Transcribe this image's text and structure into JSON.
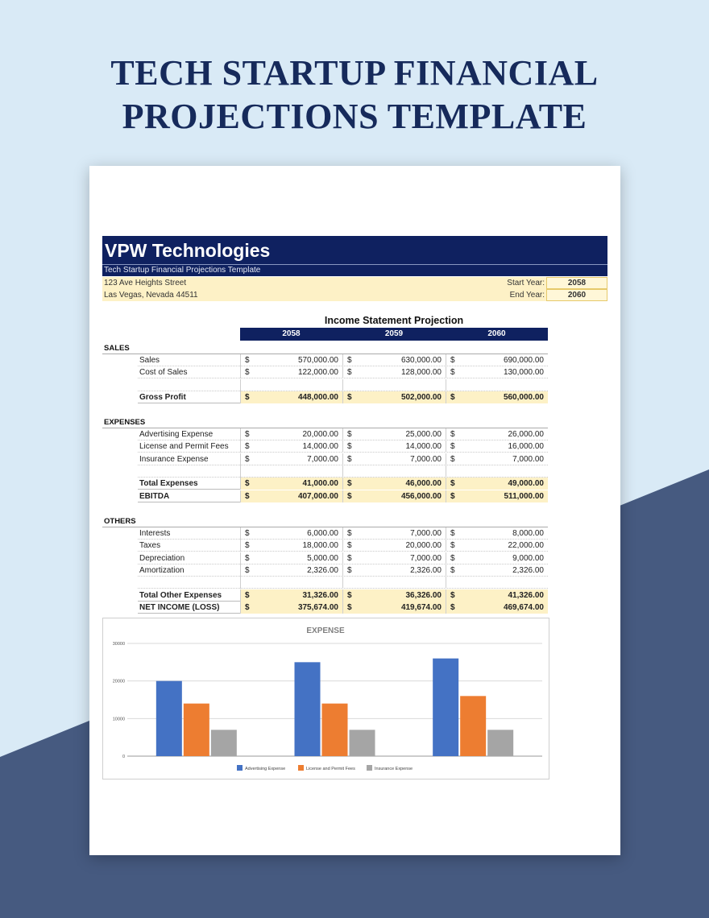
{
  "header": {
    "title_line1": "TECH STARTUP FINANCIAL",
    "title_line2": "PROJECTIONS TEMPLATE"
  },
  "company": {
    "name": "VPW Technologies",
    "subtitle": "Tech Startup Financial Projections Template",
    "address_line1": "123 Ave Heights Street",
    "address_line2": "Las Vegas, Nevada 44511",
    "start_year_label": "Start Year:",
    "start_year": "2058",
    "end_year_label": "End Year:",
    "end_year": "2060"
  },
  "statement": {
    "title": "Income Statement Projection",
    "years": [
      "2058",
      "2059",
      "2060"
    ],
    "currency": "$",
    "groups": [
      {
        "label": "SALES",
        "rows": [
          {
            "label": "Sales",
            "values": [
              "570,000.00",
              "630,000.00",
              "690,000.00"
            ]
          },
          {
            "label": "Cost of Sales",
            "values": [
              "122,000.00",
              "128,000.00",
              "130,000.00"
            ]
          },
          {
            "label": "",
            "values": [
              "",
              "",
              ""
            ],
            "blank": true
          },
          {
            "label": "Gross Profit",
            "values": [
              "448,000.00",
              "502,000.00",
              "560,000.00"
            ],
            "total": true
          }
        ]
      },
      {
        "label": "EXPENSES",
        "rows": [
          {
            "label": "Advertising Expense",
            "values": [
              "20,000.00",
              "25,000.00",
              "26,000.00"
            ]
          },
          {
            "label": "License and Permit Fees",
            "values": [
              "14,000.00",
              "14,000.00",
              "16,000.00"
            ]
          },
          {
            "label": "Insurance Expense",
            "values": [
              "7,000.00",
              "7,000.00",
              "7,000.00"
            ]
          },
          {
            "label": "",
            "values": [
              "",
              "",
              ""
            ],
            "blank": true
          },
          {
            "label": "Total Expenses",
            "values": [
              "41,000.00",
              "46,000.00",
              "49,000.00"
            ],
            "total": true
          },
          {
            "label": "EBITDA",
            "values": [
              "407,000.00",
              "456,000.00",
              "511,000.00"
            ],
            "total": true
          }
        ]
      },
      {
        "label": "OTHERS",
        "rows": [
          {
            "label": "Interests",
            "values": [
              "6,000.00",
              "7,000.00",
              "8,000.00"
            ]
          },
          {
            "label": "Taxes",
            "values": [
              "18,000.00",
              "20,000.00",
              "22,000.00"
            ]
          },
          {
            "label": "Depreciation",
            "values": [
              "5,000.00",
              "7,000.00",
              "9,000.00"
            ]
          },
          {
            "label": "Amortization",
            "values": [
              "2,326.00",
              "2,326.00",
              "2,326.00"
            ]
          },
          {
            "label": "",
            "values": [
              "",
              "",
              ""
            ],
            "blank": true
          },
          {
            "label": "Total Other Expenses",
            "values": [
              "31,326.00",
              "36,326.00",
              "41,326.00"
            ],
            "total": true
          },
          {
            "label": "NET INCOME (LOSS)",
            "values": [
              "375,674.00",
              "419,674.00",
              "469,674.00"
            ],
            "total": true
          }
        ]
      }
    ]
  },
  "chart_data": {
    "type": "bar",
    "title": "EXPENSE",
    "categories": [
      "",
      "",
      ""
    ],
    "ylim": [
      0,
      30000
    ],
    "yticks": [
      0,
      10000,
      20000,
      30000
    ],
    "grid": true,
    "legend_position": "bottom",
    "series": [
      {
        "name": "Advertising Expense",
        "color": "#4472c4",
        "values": [
          20000,
          25000,
          26000
        ]
      },
      {
        "name": "License and Permit Fees",
        "color": "#ed7d31",
        "values": [
          14000,
          14000,
          16000
        ]
      },
      {
        "name": "Insurance Expense",
        "color": "#a5a5a5",
        "values": [
          7000,
          7000,
          7000
        ]
      }
    ]
  },
  "colors": {
    "navy": "#0f2160",
    "highlight": "#fdf1c6",
    "page_bg": "#d9eaf6",
    "slate": "#465a80"
  }
}
